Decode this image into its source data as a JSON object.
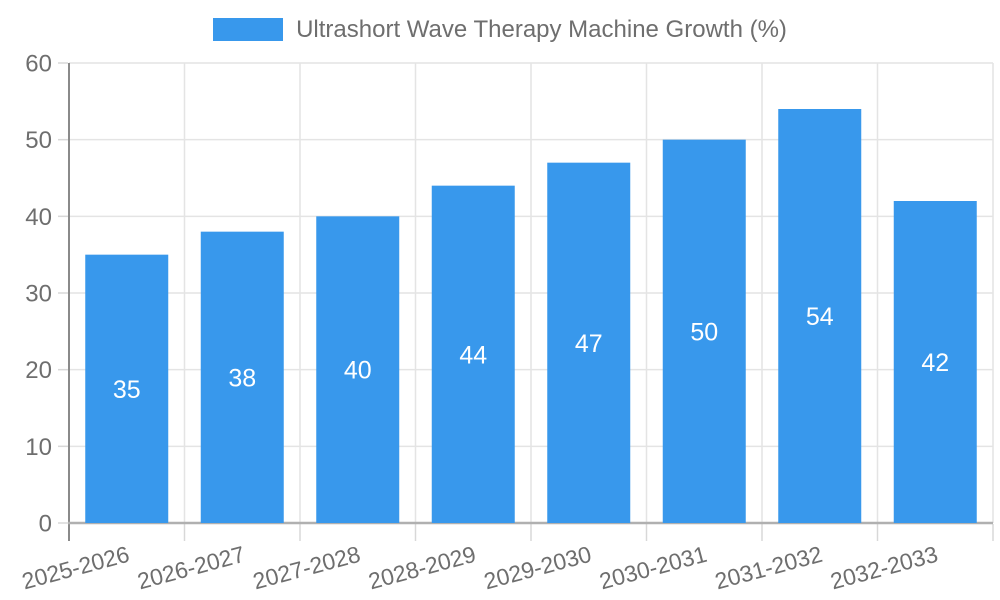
{
  "chart_data": {
    "type": "bar",
    "title": "Ultrashort Wave Therapy Machine Growth (%)",
    "legend_label": "Ultrashort Wave Therapy Machine Growth (%)",
    "legend_position": "top-center",
    "categories": [
      "2025-2026",
      "2026-2027",
      "2027-2028",
      "2028-2029",
      "2029-2030",
      "2030-2031",
      "2031-2032",
      "2032-2033"
    ],
    "values": [
      35,
      38,
      40,
      44,
      47,
      50,
      54,
      42
    ],
    "yticks": [
      0,
      10,
      20,
      30,
      40,
      50,
      60
    ],
    "ylim": [
      0,
      60
    ],
    "grid": "on",
    "bar_value_labels_inside": true,
    "colors": {
      "bar": "#3898EC",
      "bar_value_label": "#ffffff",
      "axis_text": "#6e6e6e",
      "grid_line": "#e4e4e4",
      "tick_line": "#d8d8d8",
      "y_axis_line": "#8a8a8a",
      "x_axis_line": "#b0b0b0"
    }
  }
}
